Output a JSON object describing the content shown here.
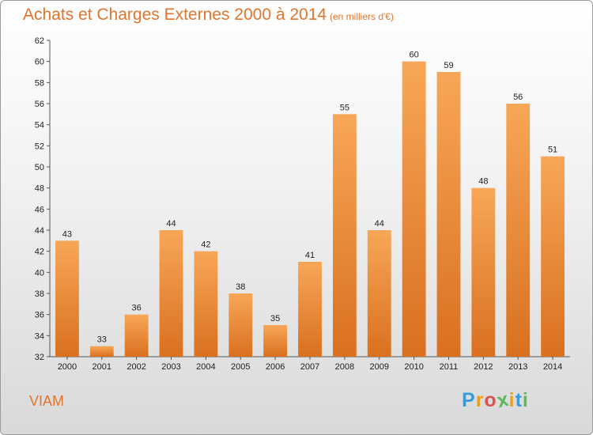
{
  "title": "Achats et Charges Externes 2000 à 2014",
  "subtitle": "(en milliers d'€)",
  "commune": "VIAM",
  "logo_text": "Proxiti",
  "colors": {
    "title": "#e0752d",
    "bar_top": "#f7a757",
    "bar_bottom": "#d9701f"
  },
  "chart_data": {
    "type": "bar",
    "categories": [
      "2000",
      "2001",
      "2002",
      "2003",
      "2004",
      "2005",
      "2006",
      "2007",
      "2008",
      "2009",
      "2010",
      "2011",
      "2012",
      "2013",
      "2014"
    ],
    "values": [
      43,
      33,
      36,
      44,
      42,
      38,
      35,
      41,
      55,
      44,
      60,
      59,
      48,
      56,
      51
    ],
    "ylim": [
      32,
      62
    ],
    "yticks": [
      32,
      34,
      36,
      38,
      40,
      42,
      44,
      46,
      48,
      50,
      52,
      54,
      56,
      58,
      60,
      62
    ],
    "grid": false,
    "legend": "none"
  }
}
